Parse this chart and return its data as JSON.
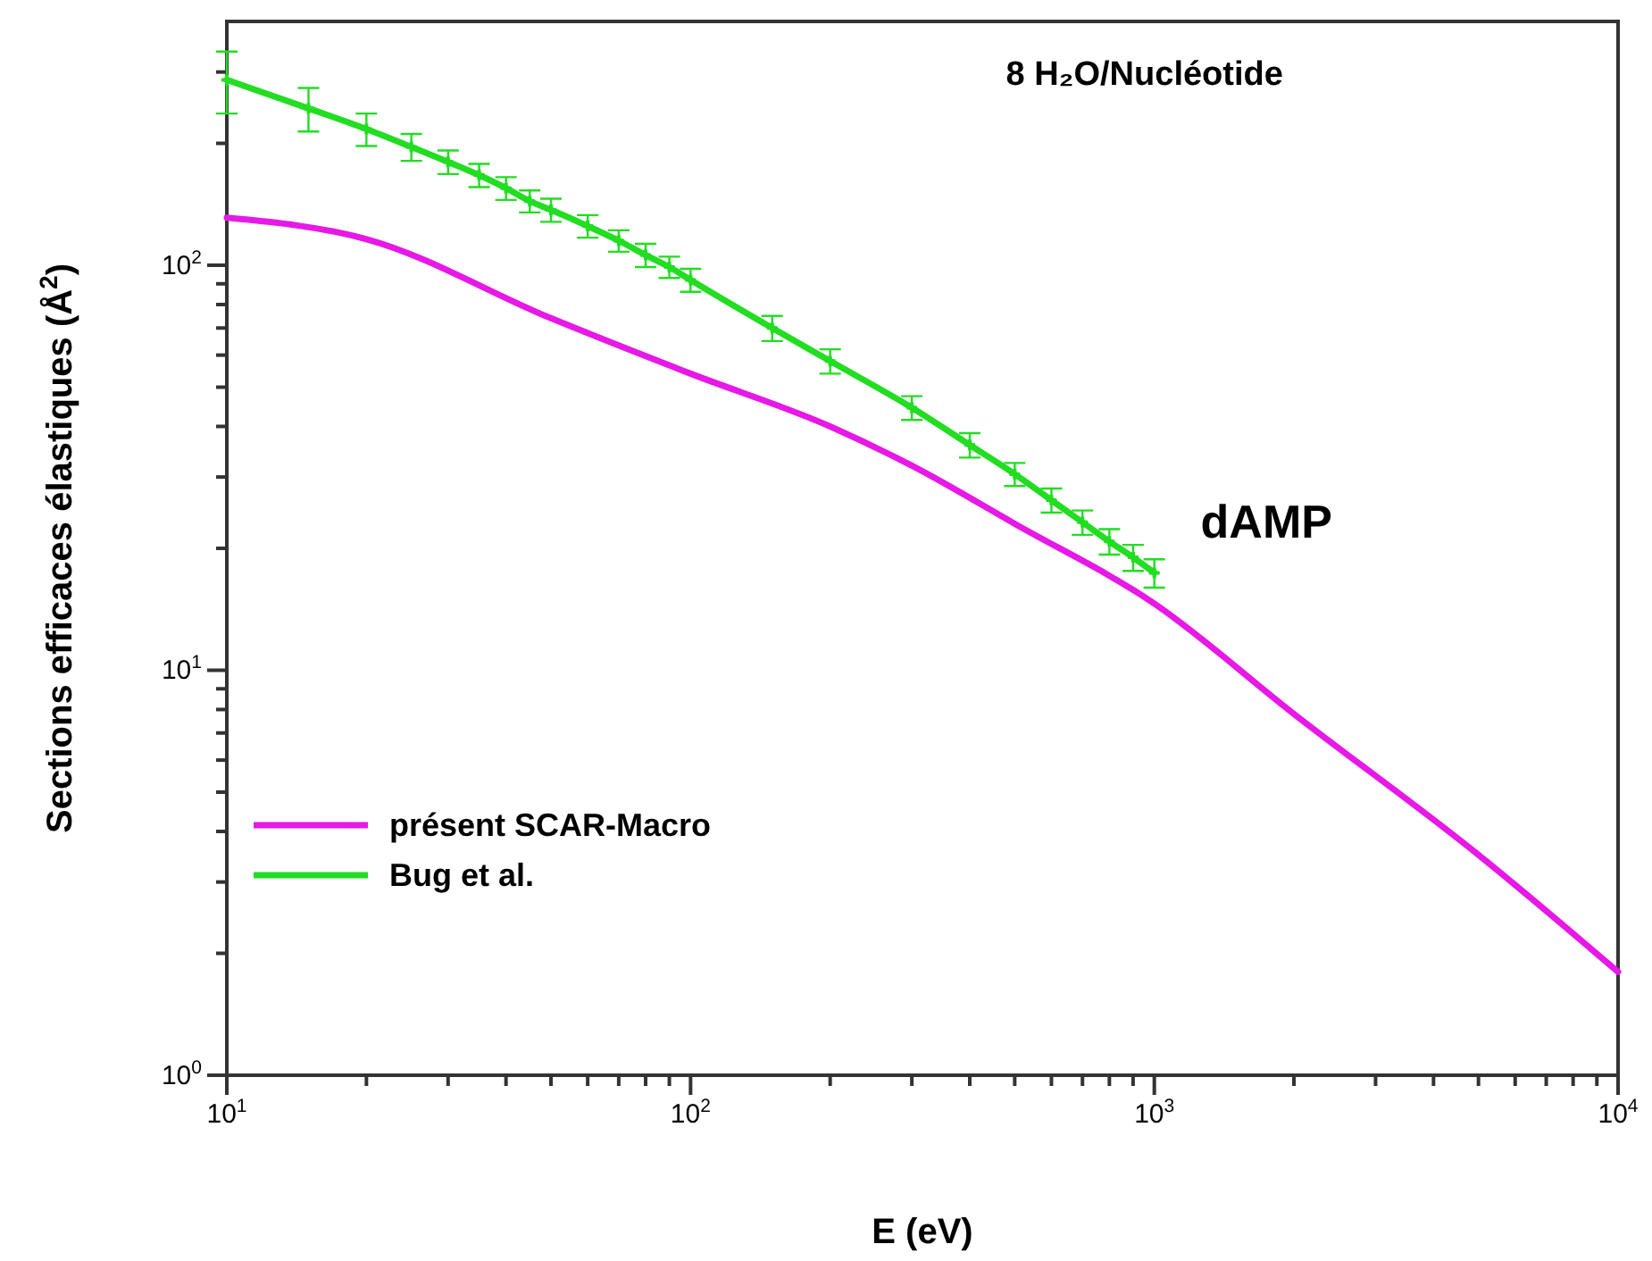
{
  "chart_data": {
    "type": "line",
    "xlabel": "E (eV)",
    "ylabel": "Sections efficaces élastiques (Å$^{2}$)",
    "log": "xy",
    "xlim": [
      10,
      10000
    ],
    "ylim": [
      1,
      400
    ],
    "xticks": [
      {
        "value": 10,
        "label": "10$^{1}$"
      },
      {
        "value": 20,
        "label": null
      },
      {
        "value": 30,
        "label": null
      },
      {
        "value": 40,
        "label": null
      },
      {
        "value": 50,
        "label": null
      },
      {
        "value": 60,
        "label": null
      },
      {
        "value": 70,
        "label": null
      },
      {
        "value": 80,
        "label": null
      },
      {
        "value": 90,
        "label": null
      },
      {
        "value": 100,
        "label": "10$^{2}$"
      },
      {
        "value": 200,
        "label": null
      },
      {
        "value": 300,
        "label": null
      },
      {
        "value": 400,
        "label": null
      },
      {
        "value": 500,
        "label": null
      },
      {
        "value": 600,
        "label": null
      },
      {
        "value": 700,
        "label": null
      },
      {
        "value": 800,
        "label": null
      },
      {
        "value": 900,
        "label": null
      },
      {
        "value": 1000,
        "label": "10$^{3}$"
      },
      {
        "value": 2000,
        "label": null
      },
      {
        "value": 3000,
        "label": null
      },
      {
        "value": 4000,
        "label": null
      },
      {
        "value": 5000,
        "label": null
      },
      {
        "value": 6000,
        "label": null
      },
      {
        "value": 7000,
        "label": null
      },
      {
        "value": 8000,
        "label": null
      },
      {
        "value": 9000,
        "label": null
      },
      {
        "value": 10000,
        "label": "10$^{4}$"
      }
    ],
    "yticks": [
      {
        "value": 1,
        "label": "10$^{0}$"
      },
      {
        "value": 2,
        "label": null
      },
      {
        "value": 3,
        "label": null
      },
      {
        "value": 4,
        "label": null
      },
      {
        "value": 5,
        "label": null
      },
      {
        "value": 6,
        "label": null
      },
      {
        "value": 7,
        "label": null
      },
      {
        "value": 8,
        "label": null
      },
      {
        "value": 9,
        "label": null
      },
      {
        "value": 10,
        "label": "10$^{1}$"
      },
      {
        "value": 20,
        "label": null
      },
      {
        "value": 30,
        "label": null
      },
      {
        "value": 40,
        "label": null
      },
      {
        "value": 50,
        "label": null
      },
      {
        "value": 60,
        "label": null
      },
      {
        "value": 70,
        "label": null
      },
      {
        "value": 80,
        "label": null
      },
      {
        "value": 90,
        "label": null
      },
      {
        "value": 100,
        "label": "10$^{2}$"
      },
      {
        "value": 200,
        "label": null
      },
      {
        "value": 300,
        "label": null
      }
    ],
    "legend": "bottom left",
    "line_style": "solid",
    "grid": false,
    "annotations": [
      "8 H₂O/Nucléotide",
      "dAMP"
    ],
    "series": [
      {
        "name": "présent SCAR-Macro",
        "color": "#e619e6",
        "x": [
          10,
          20,
          50,
          100,
          200,
          300,
          500,
          1000,
          2000,
          5000,
          10000
        ],
        "values": [
          131,
          116,
          74,
          54,
          40,
          32,
          23,
          14.6,
          7.8,
          3.5,
          1.8
        ]
      },
      {
        "name": "Bug et al.",
        "color": "#22dd22",
        "marker": "cross",
        "x": [
          10,
          15,
          20,
          25,
          30,
          35,
          40,
          45,
          50,
          60,
          70,
          80,
          90,
          100,
          150,
          200,
          300,
          400,
          500,
          600,
          700,
          800,
          900,
          1000
        ],
        "values": [
          287,
          244,
          217,
          196,
          180,
          167,
          155,
          144,
          137,
          125,
          115,
          106,
          99,
          92,
          70,
          58,
          44.5,
          36,
          30.5,
          26.3,
          23.2,
          20.8,
          19,
          17.4
        ],
        "errors": [
          50,
          30,
          20,
          15,
          12,
          11,
          10,
          9,
          9,
          8,
          7,
          7,
          6,
          6,
          5,
          4,
          3,
          2.5,
          2,
          1.8,
          1.6,
          1.5,
          1.4,
          1.4
        ]
      }
    ]
  }
}
